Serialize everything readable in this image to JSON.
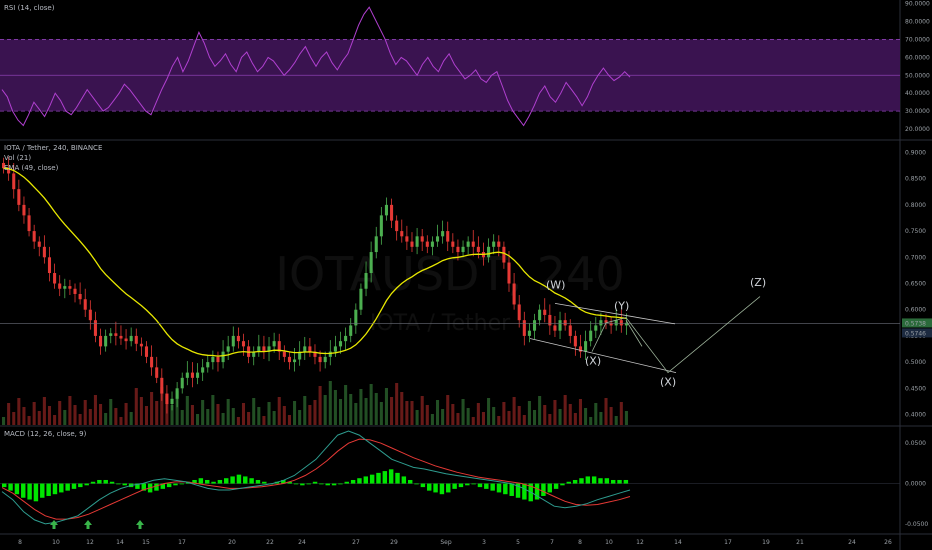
{
  "chart_data": {
    "type": "candlestick",
    "symbol_line": "IOTA / Tether, 240, BINANCE",
    "watermark": "IOTAUSDT, 240",
    "watermark_sub": "IOTA / Tether",
    "x_ticks": [
      "8",
      "10",
      "12",
      "14",
      "15",
      "17",
      "20",
      "22",
      "24",
      "27",
      "29",
      "Sep",
      "3",
      "5",
      "7",
      "8",
      "10",
      "12",
      "14",
      "17",
      "19",
      "21",
      "24",
      "26"
    ],
    "price_axis": [
      "0.9000",
      "0.8500",
      "0.8000",
      "0.7500",
      "0.7000",
      "0.6500",
      "0.6000",
      "0.5500",
      "0.5000",
      "0.4500",
      "0.4000"
    ],
    "last_price": "0.5738",
    "last_price_2": "0.5746",
    "close_prices": [
      0.87,
      0.86,
      0.83,
      0.8,
      0.78,
      0.75,
      0.73,
      0.72,
      0.7,
      0.67,
      0.65,
      0.64,
      0.645,
      0.64,
      0.63,
      0.62,
      0.6,
      0.58,
      0.55,
      0.53,
      0.55,
      0.555,
      0.55,
      0.545,
      0.54,
      0.55,
      0.535,
      0.53,
      0.51,
      0.49,
      0.47,
      0.44,
      0.42,
      0.43,
      0.45,
      0.47,
      0.48,
      0.47,
      0.48,
      0.49,
      0.5,
      0.51,
      0.5,
      0.52,
      0.53,
      0.55,
      0.54,
      0.53,
      0.51,
      0.52,
      0.53,
      0.52,
      0.53,
      0.54,
      0.52,
      0.51,
      0.5,
      0.505,
      0.52,
      0.53,
      0.52,
      0.51,
      0.5,
      0.51,
      0.52,
      0.53,
      0.54,
      0.55,
      0.57,
      0.6,
      0.64,
      0.67,
      0.71,
      0.74,
      0.78,
      0.8,
      0.77,
      0.75,
      0.74,
      0.73,
      0.72,
      0.74,
      0.73,
      0.72,
      0.73,
      0.74,
      0.75,
      0.73,
      0.72,
      0.71,
      0.72,
      0.73,
      0.72,
      0.71,
      0.7,
      0.72,
      0.73,
      0.72,
      0.69,
      0.65,
      0.61,
      0.58,
      0.55,
      0.56,
      0.58,
      0.6,
      0.59,
      0.57,
      0.56,
      0.58,
      0.57,
      0.55,
      0.53,
      0.52,
      0.54,
      0.56,
      0.57,
      0.58,
      0.575,
      0.57,
      0.58,
      0.57,
      0.575
    ],
    "ema_label": "EMA (49, close)",
    "vol_label": "Vol (21)",
    "rsi": {
      "label": "RSI (14, close)",
      "axis": [
        "90.0000",
        "80.0000",
        "70.0000",
        "60.0000",
        "50.0000",
        "40.0000",
        "30.0000",
        "20.0000"
      ],
      "upper": 70,
      "mid": 50,
      "lower": 30,
      "values": [
        42,
        38,
        30,
        25,
        22,
        28,
        35,
        31,
        27,
        33,
        40,
        36,
        30,
        28,
        32,
        37,
        42,
        38,
        34,
        30,
        32,
        36,
        40,
        45,
        42,
        38,
        34,
        30,
        28,
        35,
        42,
        48,
        55,
        60,
        52,
        58,
        66,
        74,
        68,
        60,
        55,
        58,
        62,
        56,
        52,
        60,
        63,
        57,
        52,
        55,
        60,
        58,
        54,
        50,
        53,
        57,
        62,
        66,
        60,
        55,
        60,
        63,
        57,
        53,
        58,
        62,
        70,
        78,
        84,
        88,
        82,
        76,
        70,
        62,
        56,
        60,
        58,
        54,
        50,
        56,
        60,
        55,
        52,
        58,
        62,
        56,
        52,
        48,
        50,
        53,
        48,
        46,
        50,
        52,
        44,
        36,
        30,
        26,
        22,
        27,
        33,
        40,
        44,
        38,
        35,
        40,
        46,
        42,
        38,
        33,
        38,
        45,
        50,
        54,
        50,
        47,
        49,
        52,
        49
      ]
    },
    "macd": {
      "label": "MACD (12, 26, close, 9)",
      "axis": [
        "0.0500",
        "0.0000",
        "-0.0500"
      ],
      "hist": [
        -0.002,
        -0.004,
        -0.006,
        -0.008,
        -0.009,
        -0.01,
        -0.008,
        -0.007,
        -0.006,
        -0.005,
        -0.004,
        -0.003,
        -0.002,
        -0.001,
        0.001,
        0.002,
        0.002,
        0.001,
        0.0,
        -0.001,
        -0.002,
        -0.003,
        -0.004,
        -0.005,
        -0.004,
        -0.003,
        -0.002,
        -0.001,
        0.0,
        0.001,
        0.002,
        0.003,
        0.002,
        0.001,
        0.002,
        0.003,
        0.004,
        0.005,
        0.004,
        0.003,
        0.002,
        0.001,
        0.0,
        0.001,
        0.002,
        0.001,
        0.0,
        -0.001,
        0.0,
        0.001,
        0.0,
        -0.001,
        -0.001,
        0.0,
        0.001,
        0.002,
        0.003,
        0.004,
        0.005,
        0.006,
        0.007,
        0.008,
        0.006,
        0.004,
        0.002,
        0.0,
        -0.002,
        -0.004,
        -0.005,
        -0.006,
        -0.005,
        -0.003,
        -0.002,
        -0.001,
        0.0,
        -0.002,
        -0.003,
        -0.004,
        -0.005,
        -0.006,
        -0.007,
        -0.008,
        -0.009,
        -0.01,
        -0.009,
        -0.007,
        -0.005,
        -0.003,
        -0.001,
        0.001,
        0.002,
        0.003,
        0.004,
        0.004,
        0.003,
        0.003,
        0.002,
        0.002,
        0.002
      ],
      "macd_line": [
        -0.01,
        -0.02,
        -0.035,
        -0.045,
        -0.05,
        -0.048,
        -0.044,
        -0.04,
        -0.03,
        -0.02,
        -0.012,
        -0.006,
        -0.002,
        0.0,
        0.004,
        0.006,
        0.004,
        0.002,
        -0.002,
        -0.006,
        -0.008,
        -0.008,
        -0.006,
        -0.004,
        -0.002,
        0.0,
        0.004,
        0.01,
        0.02,
        0.03,
        0.045,
        0.06,
        0.065,
        0.06,
        0.05,
        0.04,
        0.03,
        0.025,
        0.02,
        0.018,
        0.015,
        0.012,
        0.01,
        0.008,
        0.006,
        0.004,
        0.002,
        0.0,
        -0.005,
        -0.012,
        -0.02,
        -0.028,
        -0.03,
        -0.028,
        -0.025,
        -0.02,
        -0.016,
        -0.012,
        -0.008
      ],
      "signal_line": [
        -0.005,
        -0.012,
        -0.022,
        -0.032,
        -0.04,
        -0.044,
        -0.044,
        -0.042,
        -0.038,
        -0.032,
        -0.026,
        -0.02,
        -0.014,
        -0.008,
        -0.004,
        0.0,
        0.002,
        0.002,
        0.0,
        -0.002,
        -0.004,
        -0.006,
        -0.006,
        -0.005,
        -0.004,
        -0.002,
        0.0,
        0.004,
        0.01,
        0.018,
        0.028,
        0.04,
        0.05,
        0.055,
        0.054,
        0.05,
        0.044,
        0.038,
        0.032,
        0.027,
        0.022,
        0.018,
        0.014,
        0.011,
        0.008,
        0.006,
        0.004,
        0.002,
        0.0,
        -0.004,
        -0.01,
        -0.016,
        -0.022,
        -0.026,
        -0.027,
        -0.026,
        -0.023,
        -0.02,
        -0.016
      ]
    },
    "wave_labels": [
      "(W)",
      "(X)",
      "(Y)",
      "(X)",
      "(Z)"
    ],
    "colors": {
      "up": "#4caf50",
      "down": "#e53935",
      "ema": "#e8e800",
      "rsi_line": "#b040d0",
      "rsi_band": "#3a1350",
      "macd_line": "#2e9c8f",
      "signal_line": "#e53935",
      "hist": "#00e600",
      "signal_arrow": "#39b54a"
    }
  }
}
